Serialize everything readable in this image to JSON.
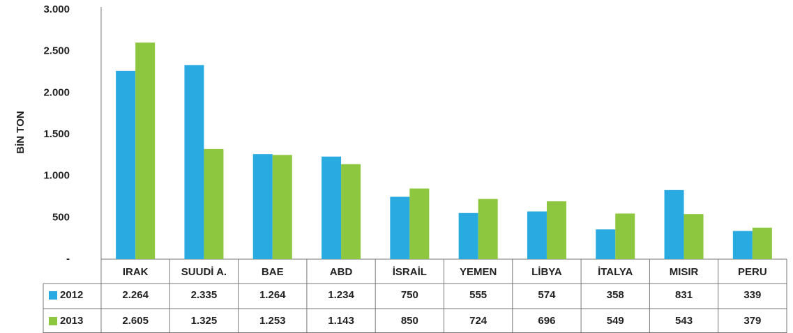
{
  "chart_data": {
    "type": "bar",
    "y_label": "BİN TON",
    "categories": [
      "IRAK",
      "SUUDİ A.",
      "BAE",
      "ABD",
      "İSRAİL",
      "YEMEN",
      "LİBYA",
      "İTALYA",
      "MISIR",
      "PERU"
    ],
    "series": [
      {
        "name": "2012",
        "color": "#29abe2",
        "values": [
          2264,
          2335,
          1264,
          1234,
          750,
          555,
          574,
          358,
          831,
          339
        ],
        "value_labels": [
          "2.264",
          "2.335",
          "1.264",
          "1.234",
          "750",
          "555",
          "574",
          "358",
          "831",
          "339"
        ]
      },
      {
        "name": "2013",
        "color": "#8dc63f",
        "values": [
          2605,
          1325,
          1253,
          1143,
          850,
          724,
          696,
          549,
          543,
          379
        ],
        "value_labels": [
          "2.605",
          "1.325",
          "1.253",
          "1.143",
          "850",
          "724",
          "696",
          "549",
          "543",
          "379"
        ]
      }
    ],
    "ylim": [
      0,
      3000
    ],
    "yticks": [
      {
        "value": 0,
        "label": "-"
      },
      500,
      {
        "value": 1000,
        "label": "1.000"
      },
      {
        "value": 1500,
        "label": "1.500"
      },
      {
        "value": 2000,
        "label": "2.000"
      },
      {
        "value": 2500,
        "label": "2.500"
      },
      {
        "value": 3000,
        "label": "3.000"
      }
    ]
  }
}
